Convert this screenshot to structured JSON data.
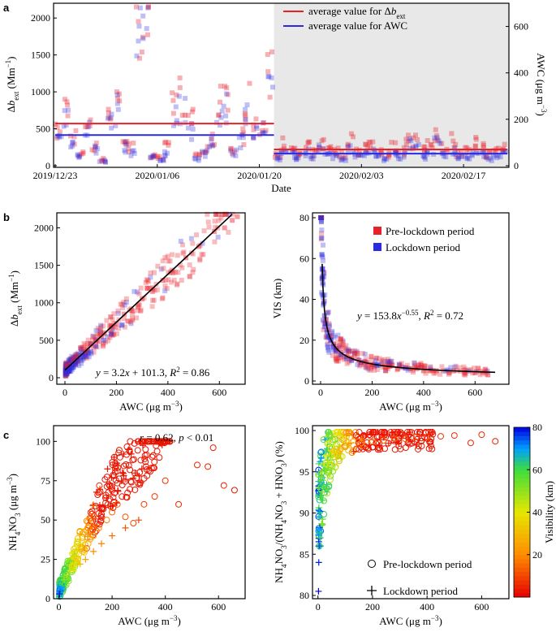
{
  "figure": {
    "panel_a": "a",
    "panel_b": "b",
    "panel_c": "c",
    "colors": {
      "pre": "#e8202a",
      "lock": "#2a2ae0",
      "fit": "#000000",
      "shade": "#e8e8e8"
    }
  },
  "chart_data": [
    {
      "id": "a",
      "type": "scatter",
      "xlabel": "Date",
      "ylabel_left": "Δb_ext (Mm⁻¹)",
      "ylabel_right": "AWC (μg m⁻³)",
      "x_ticks": [
        "2019/12/23",
        "2020/01/06",
        "2020/01/20",
        "2020/02/03",
        "2020/02/17"
      ],
      "x_tick_days": [
        0,
        14,
        28,
        42,
        56
      ],
      "xlim_days": [
        0,
        62
      ],
      "lockdown_start_day": 30,
      "ylim_left": [
        0,
        2200
      ],
      "ylim_right": [
        0,
        700
      ],
      "y_ticks_left": [
        0,
        500,
        1000,
        1500,
        2000
      ],
      "y_ticks_right": [
        0,
        200,
        400,
        600
      ],
      "legend": [
        "average value for Δb_ext",
        "average value for AWC"
      ],
      "averages": {
        "pre_dbext": 570,
        "lock_dbext": 220,
        "pre_awc": 132,
        "lock_awc": 52
      },
      "series": [
        {
          "name": "Δb_ext",
          "axis": "left",
          "days": [
            0,
            1,
            2,
            3,
            4,
            5,
            6,
            7,
            8,
            9,
            10,
            11,
            12,
            13,
            14,
            15,
            16,
            17,
            18,
            19,
            20,
            21,
            22,
            23,
            24,
            25,
            26,
            27,
            28,
            29,
            30,
            31,
            32,
            33,
            34,
            35,
            36,
            37,
            38,
            39,
            40,
            41,
            42,
            43,
            44,
            45,
            46,
            47,
            48,
            49,
            50,
            51,
            52,
            53,
            54,
            55,
            56,
            57,
            58,
            59,
            60,
            61
          ],
          "values": [
            450,
            800,
            400,
            150,
            600,
            250,
            80,
            750,
            900,
            350,
            250,
            1850,
            2050,
            150,
            100,
            250,
            850,
            950,
            600,
            150,
            200,
            350,
            850,
            1050,
            200,
            400,
            900,
            500,
            500,
            1200,
            150,
            300,
            200,
            150,
            250,
            180,
            300,
            250,
            200,
            150,
            350,
            200,
            250,
            300,
            200,
            150,
            250,
            200,
            400,
            350,
            200,
            300,
            450,
            250,
            350,
            150,
            200,
            300,
            250,
            150,
            200,
            250
          ]
        },
        {
          "name": "AWC",
          "axis": "right",
          "days": [
            0,
            1,
            2,
            3,
            4,
            5,
            6,
            7,
            8,
            9,
            10,
            11,
            12,
            13,
            14,
            15,
            16,
            17,
            18,
            19,
            20,
            21,
            22,
            23,
            24,
            25,
            26,
            27,
            28,
            29,
            30,
            31,
            32,
            33,
            34,
            35,
            36,
            37,
            38,
            39,
            40,
            41,
            42,
            43,
            44,
            45,
            46,
            47,
            48,
            49,
            50,
            51,
            52,
            53,
            54,
            55,
            56,
            57,
            58,
            59,
            60,
            61
          ],
          "values": [
            120,
            220,
            110,
            40,
            160,
            70,
            20,
            200,
            240,
            80,
            60,
            560,
            620,
            40,
            20,
            50,
            220,
            250,
            160,
            30,
            50,
            90,
            230,
            260,
            60,
            110,
            240,
            140,
            150,
            300,
            30,
            60,
            50,
            30,
            60,
            40,
            70,
            60,
            40,
            30,
            80,
            40,
            50,
            60,
            40,
            30,
            50,
            40,
            90,
            80,
            40,
            60,
            100,
            50,
            70,
            30,
            40,
            60,
            50,
            30,
            40,
            50
          ]
        }
      ]
    },
    {
      "id": "b-left",
      "type": "scatter",
      "xlabel": "AWC (μg m⁻³)",
      "ylabel": "Δb_ext (Mm⁻¹)",
      "xlim": [
        0,
        700
      ],
      "ylim": [
        0,
        2200
      ],
      "x_ticks": [
        0,
        200,
        400,
        600
      ],
      "y_ticks": [
        0,
        500,
        1000,
        1500,
        2000
      ],
      "fit": {
        "slope": 3.2,
        "intercept": 101.3,
        "r2": 0.86
      },
      "annotation": "y = 3.2x + 101.3, R² = 0.86",
      "series": [
        {
          "name": "Pre-lockdown period",
          "x": [
            10,
            20,
            30,
            40,
            50,
            60,
            80,
            100,
            120,
            150,
            180,
            200,
            230,
            260,
            300,
            340,
            380,
            420,
            470,
            520,
            580,
            620,
            650,
            670
          ],
          "y": [
            150,
            170,
            250,
            300,
            280,
            400,
            350,
            450,
            500,
            600,
            700,
            720,
            850,
            900,
            1050,
            1150,
            1300,
            1400,
            1600,
            1750,
            1950,
            2000,
            2100,
            2150
          ]
        },
        {
          "name": "Lockdown period",
          "x": [
            2,
            5,
            8,
            12,
            15,
            20,
            25,
            30,
            40,
            50,
            60,
            70,
            80,
            90,
            100,
            120,
            150,
            180,
            220
          ],
          "y": [
            60,
            80,
            100,
            120,
            90,
            150,
            130,
            170,
            200,
            230,
            260,
            280,
            300,
            330,
            350,
            420,
            500,
            580,
            700
          ]
        }
      ]
    },
    {
      "id": "b-right",
      "type": "scatter",
      "xlabel": "AWC (μg m⁻³)",
      "ylabel": "VIS (km)",
      "xlim": [
        0,
        700
      ],
      "ylim": [
        0,
        80
      ],
      "x_ticks": [
        0,
        200,
        400,
        600
      ],
      "y_ticks": [
        0,
        20,
        40,
        60,
        80
      ],
      "fit": {
        "a": 153.8,
        "b": -0.55,
        "r2": 0.72
      },
      "annotation": "y = 153.8x^-0.55, R² = 0.72",
      "legend": [
        "Pre-lockdown period",
        "Lockdown period"
      ],
      "series": [
        {
          "name": "Pre-lockdown period",
          "x": [
            20,
            30,
            40,
            50,
            60,
            80,
            100,
            120,
            150,
            180,
            200,
            250,
            300,
            350,
            400,
            450,
            500,
            560,
            600,
            650
          ],
          "y": [
            30,
            25,
            22,
            18,
            16,
            14,
            12,
            11,
            10,
            9,
            8,
            7,
            6,
            6,
            5,
            5,
            4,
            4,
            4,
            3
          ]
        },
        {
          "name": "Lockdown period",
          "x": [
            2,
            3,
            4,
            5,
            6,
            8,
            10,
            12,
            15,
            20,
            25,
            30,
            40,
            50,
            60,
            80,
            100,
            120
          ],
          "y": [
            80,
            78,
            70,
            62,
            55,
            48,
            42,
            38,
            32,
            28,
            24,
            22,
            20,
            17,
            15,
            13,
            11,
            10
          ]
        }
      ]
    },
    {
      "id": "c-left",
      "type": "scatter",
      "xlabel": "AWC (μg m⁻³)",
      "ylabel": "NH4NO3 (μg m⁻³)",
      "xlim": [
        -20,
        700
      ],
      "ylim": [
        0,
        110
      ],
      "x_ticks": [
        0,
        200,
        400,
        600
      ],
      "y_ticks": [
        0,
        25,
        50,
        75,
        100
      ],
      "annotation": "r = 0.62, p < 0.01",
      "series": [
        {
          "name": "Pre-lockdown period",
          "marker": "circle",
          "x": [
            5,
            15,
            30,
            50,
            70,
            90,
            110,
            130,
            150,
            180,
            200,
            220,
            250,
            280,
            320,
            360,
            400,
            450,
            520,
            560,
            580,
            620,
            660
          ],
          "y": [
            5,
            10,
            15,
            20,
            25,
            30,
            35,
            40,
            45,
            50,
            55,
            60,
            52,
            48,
            60,
            65,
            75,
            60,
            85,
            84,
            96,
            72,
            69
          ],
          "vis": [
            70,
            60,
            50,
            42,
            35,
            30,
            28,
            25,
            20,
            18,
            15,
            14,
            12,
            10,
            9,
            8,
            7,
            6,
            5,
            5,
            4,
            4,
            3
          ]
        },
        {
          "name": "Lockdown period",
          "marker": "plus",
          "x": [
            2,
            5,
            8,
            12,
            20,
            30,
            50,
            80,
            100,
            130,
            160,
            200,
            250,
            300
          ],
          "y": [
            3,
            5,
            7,
            10,
            12,
            15,
            20,
            22,
            25,
            30,
            35,
            40,
            45,
            50
          ],
          "vis": [
            80,
            75,
            70,
            60,
            50,
            45,
            35,
            30,
            25,
            20,
            18,
            15,
            12,
            10
          ]
        }
      ]
    },
    {
      "id": "c-right",
      "type": "scatter",
      "xlabel": "AWC (μg m⁻³)",
      "ylabel": "NH4NO3/(NH4NO3 + HNO3) (%)",
      "colorbar_label": "Visibility (km)",
      "colorbar_ticks": [
        20,
        40,
        60,
        80
      ],
      "colorbar_range": [
        0,
        80
      ],
      "xlim": [
        -20,
        700
      ],
      "ylim": [
        80,
        100
      ],
      "x_ticks": [
        0,
        200,
        400,
        600
      ],
      "y_ticks": [
        80,
        85,
        90,
        95,
        100
      ],
      "legend": [
        "Pre-lockdown period",
        "Lockdown period"
      ],
      "series": [
        {
          "name": "Pre-lockdown period",
          "marker": "circle",
          "x": [
            10,
            20,
            30,
            50,
            80,
            100,
            130,
            160,
            200,
            240,
            280,
            320,
            360,
            400,
            450,
            500,
            560,
            600,
            650
          ],
          "y": [
            93,
            95,
            96,
            97,
            97.5,
            98,
            98.2,
            98.5,
            98.7,
            98.8,
            99,
            99,
            99.2,
            99.2,
            99.3,
            99.4,
            98.5,
            99.5,
            98.7
          ],
          "vis": [
            60,
            50,
            42,
            36,
            30,
            26,
            24,
            20,
            18,
            15,
            13,
            12,
            10,
            8,
            7,
            6,
            5,
            5,
            4
          ]
        },
        {
          "name": "Lockdown period",
          "marker": "plus",
          "x": [
            2,
            3,
            4,
            5,
            6,
            8,
            10,
            15,
            20,
            30,
            50,
            80,
            120,
            160
          ],
          "y": [
            80.5,
            84,
            86,
            88,
            90,
            92,
            94,
            95,
            96,
            97,
            97.5,
            98,
            98.5,
            99
          ],
          "vis": [
            80,
            78,
            75,
            70,
            65,
            60,
            55,
            50,
            45,
            40,
            35,
            30,
            25,
            20
          ]
        }
      ]
    }
  ]
}
